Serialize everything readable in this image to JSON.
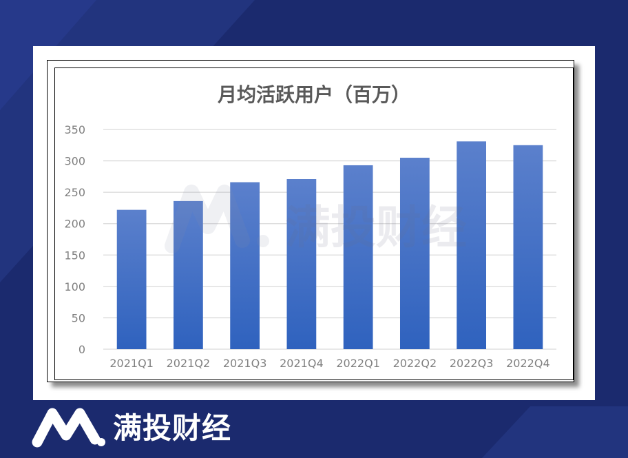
{
  "brand": {
    "name": "满投财经"
  },
  "watermark": {
    "text": "满投财经"
  },
  "colors": {
    "background": "#1b2a6e",
    "bar_top": "#5b80cc",
    "bar_bottom": "#2f62be",
    "gridline": "#d9d9d9",
    "axis_text": "#7f7f7f"
  },
  "chart_data": {
    "type": "bar",
    "title": "月均活跃用户（百万）",
    "xlabel": "",
    "ylabel": "",
    "categories": [
      "2021Q1",
      "2021Q2",
      "2021Q3",
      "2021Q4",
      "2022Q1",
      "2022Q2",
      "2022Q3",
      "2022Q4"
    ],
    "values": [
      222,
      236,
      266,
      271,
      293,
      305,
      331,
      325
    ],
    "ylim": [
      0,
      350
    ],
    "yticks": [
      "0",
      "50",
      "100",
      "150",
      "200",
      "250",
      "300",
      "350"
    ],
    "grid": true,
    "legend": "none"
  }
}
